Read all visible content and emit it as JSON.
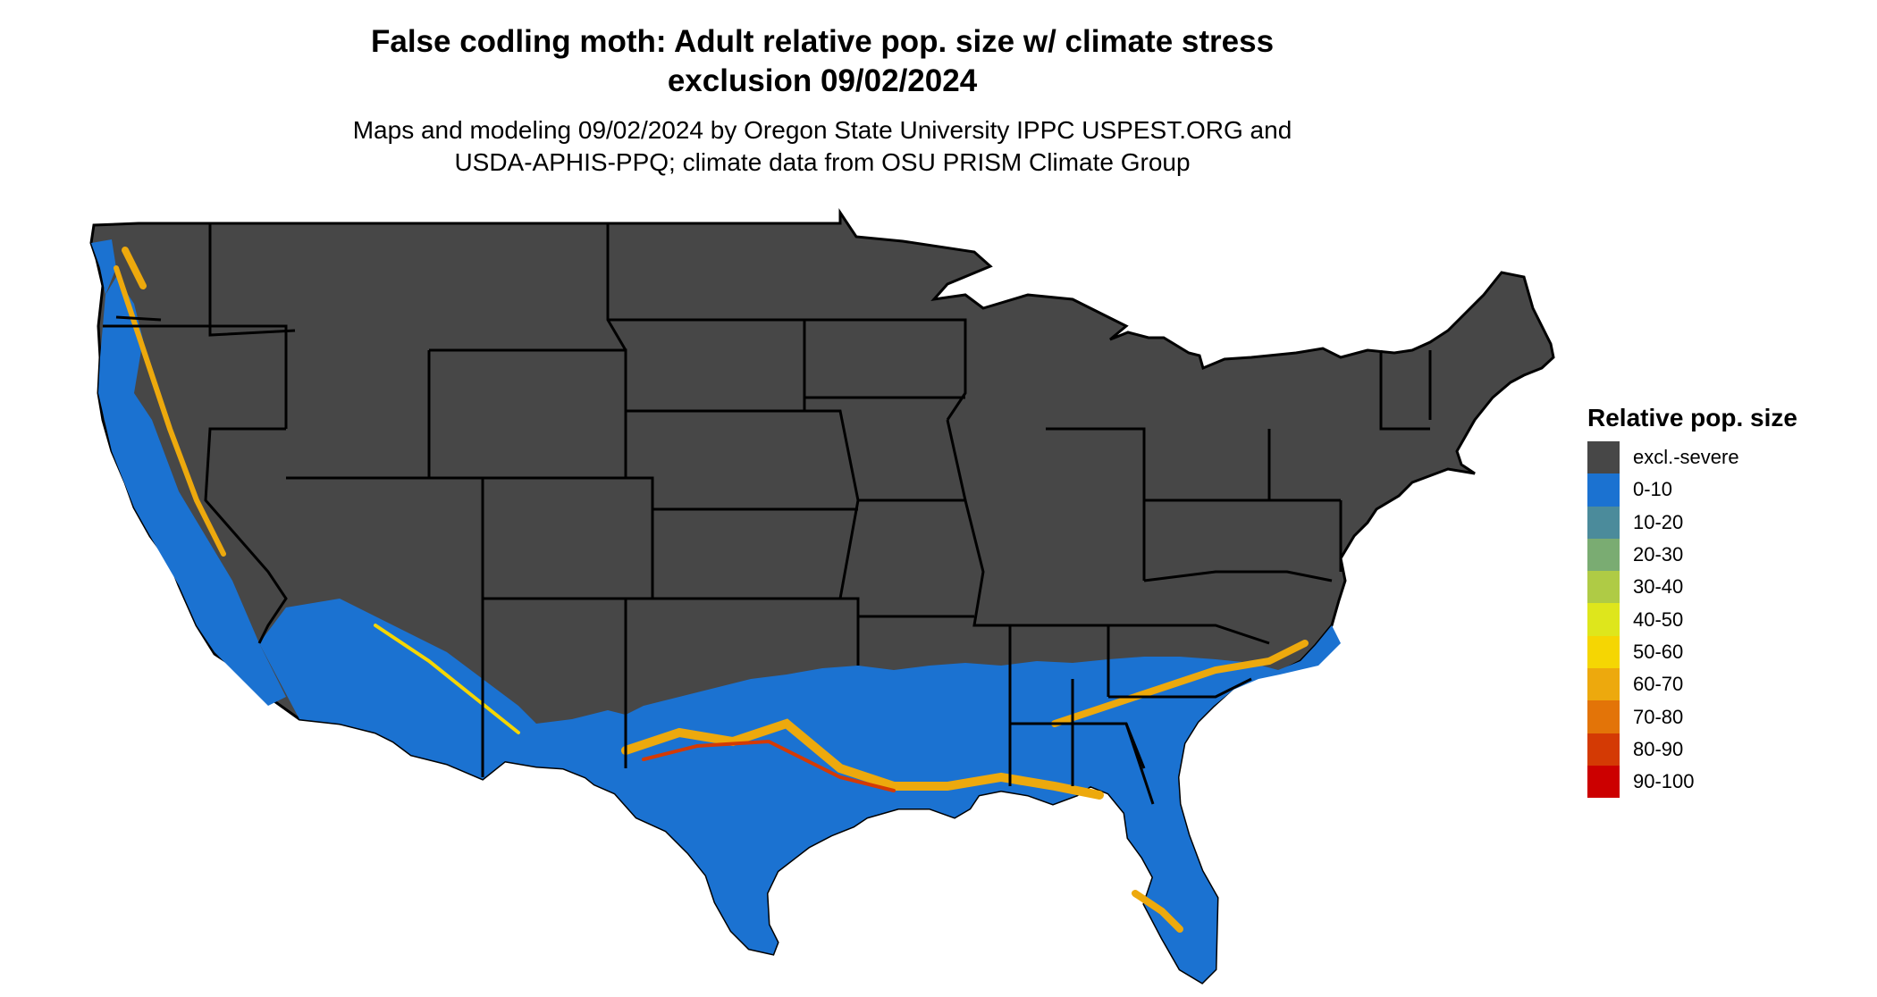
{
  "title": {
    "line1": "False codling moth: Adult relative pop. size w/ climate stress",
    "line2": "exclusion 09/02/2024"
  },
  "subtitle": {
    "line1": "Maps and modeling 09/02/2024 by Oregon State University IPPC USPEST.ORG and",
    "line2": "USDA-APHIS-PPQ; climate data from OSU PRISM Climate Group"
  },
  "legend": {
    "title": "Relative pop. size",
    "items": [
      {
        "label": "excl.-severe",
        "color": "#474747"
      },
      {
        "label": "0-10",
        "color": "#1b72d1"
      },
      {
        "label": "10-20",
        "color": "#4b8b9b"
      },
      {
        "label": "20-30",
        "color": "#7aac72"
      },
      {
        "label": "30-40",
        "color": "#afcb45"
      },
      {
        "label": "40-50",
        "color": "#dee61c"
      },
      {
        "label": "50-60",
        "color": "#f5d603"
      },
      {
        "label": "60-70",
        "color": "#eda90d"
      },
      {
        "label": "70-80",
        "color": "#e37408"
      },
      {
        "label": "80-90",
        "color": "#d43a04"
      },
      {
        "label": "90-100",
        "color": "#cc0000"
      }
    ]
  },
  "map": {
    "region": "Contiguous United States",
    "background_color": "#474747",
    "suitable_zone_color": "#1b72d1",
    "border_color": "#000000"
  }
}
